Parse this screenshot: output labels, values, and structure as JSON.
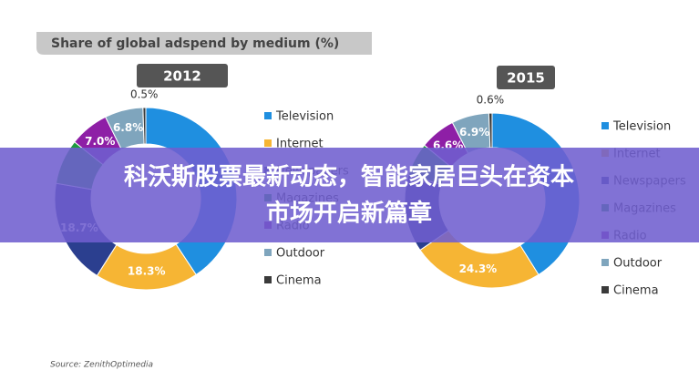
{
  "heading": "Share of global adspend by medium (%)",
  "source": "Source: ZenithOptimedia",
  "overlay": {
    "lines": [
      "科沃斯股票最新动态，智能家居巨头在资本",
      "市场开启新篇章"
    ]
  },
  "chart_data": [
    {
      "type": "pie",
      "title": "2012",
      "categories": [
        "Television",
        "Internet",
        "Newspapers",
        "Magazines",
        "Radio",
        "Outdoor",
        "Cinema"
      ],
      "values": [
        40.7,
        18.3,
        18.7,
        8.0,
        7.0,
        6.8,
        0.5
      ],
      "value_labels": [
        null,
        "18.3%",
        "18.7%",
        null,
        "7.0%",
        "6.8%",
        "0.5%"
      ],
      "colors": [
        "#1f8fe0",
        "#f6b534",
        "#2b3f8f",
        "#1e9a3e",
        "#8e1fa6",
        "#7fa5bd",
        "#3a3a3a"
      ]
    },
    {
      "type": "pie",
      "title": "2015",
      "categories": [
        "Television",
        "Internet",
        "Newspapers",
        "Magazines",
        "Radio",
        "Outdoor",
        "Cinema"
      ],
      "values": [
        41.1,
        24.3,
        14.4,
        6.1,
        6.6,
        6.9,
        0.6
      ],
      "value_labels": [
        null,
        "24.3%",
        null,
        null,
        "6.6%",
        "6.9%",
        "0.6%"
      ],
      "colors": [
        "#1f8fe0",
        "#f6b534",
        "#2b3f8f",
        "#1e9a3e",
        "#8e1fa6",
        "#7fa5bd",
        "#3a3a3a"
      ]
    }
  ]
}
